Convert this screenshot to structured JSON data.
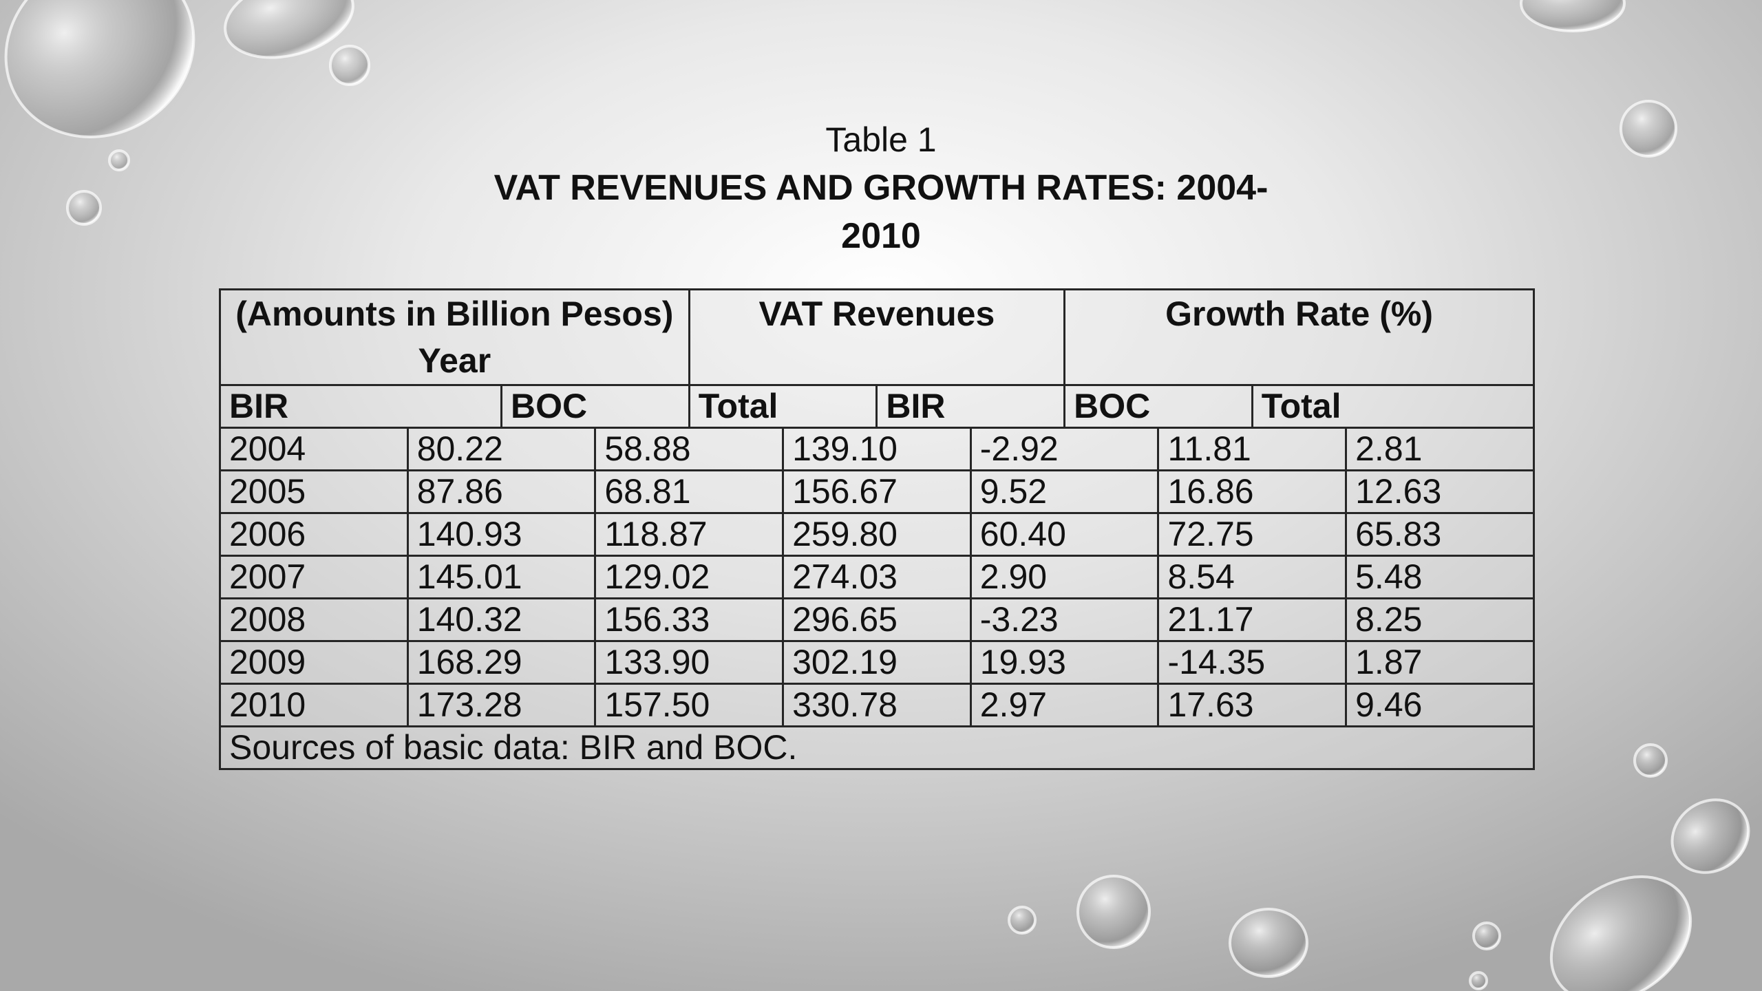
{
  "subtitle": "Table 1",
  "title": "VAT REVENUES AND GROWTH RATES: 2004-2010",
  "table": {
    "group_headers": [
      "(Amounts in Billion Pesos) Year",
      "VAT Revenues",
      "Growth Rate (%)"
    ],
    "sub_headers": [
      "BIR",
      "BOC",
      "Total",
      "BIR",
      "BOC",
      "Total"
    ],
    "rows": [
      [
        "2004",
        "80.22",
        "58.88",
        "139.10",
        "-2.92",
        "11.81",
        "2.81"
      ],
      [
        "2005",
        "87.86",
        "68.81",
        "156.67",
        "9.52",
        "16.86",
        "12.63"
      ],
      [
        "2006",
        "140.93",
        "118.87",
        "259.80",
        "60.40",
        "72.75",
        "65.83"
      ],
      [
        "2007",
        "145.01",
        "129.02",
        "274.03",
        "2.90",
        "8.54",
        "5.48"
      ],
      [
        "2008",
        "140.32",
        "156.33",
        "296.65",
        "-3.23",
        "21.17",
        "8.25"
      ],
      [
        "2009",
        "168.29",
        "133.90",
        "302.19",
        "19.93",
        "-14.35",
        "1.87"
      ],
      [
        "2010",
        "173.28",
        "157.50",
        "330.78",
        "2.97",
        "17.63",
        "9.46"
      ]
    ],
    "footnote": "Sources of basic data: BIR and BOC."
  }
}
